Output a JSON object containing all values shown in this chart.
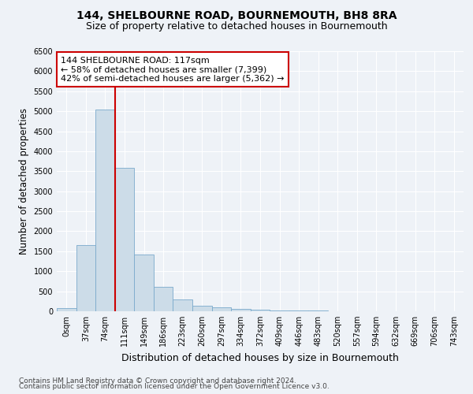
{
  "title": "144, SHELBOURNE ROAD, BOURNEMOUTH, BH8 8RA",
  "subtitle": "Size of property relative to detached houses in Bournemouth",
  "xlabel": "Distribution of detached houses by size in Bournemouth",
  "ylabel": "Number of detached properties",
  "bar_color": "#ccdce8",
  "bar_edge_color": "#7aaacc",
  "bin_labels": [
    "0sqm",
    "37sqm",
    "74sqm",
    "111sqm",
    "149sqm",
    "186sqm",
    "223sqm",
    "260sqm",
    "297sqm",
    "334sqm",
    "372sqm",
    "409sqm",
    "446sqm",
    "483sqm",
    "520sqm",
    "557sqm",
    "594sqm",
    "632sqm",
    "669sqm",
    "706sqm",
    "743sqm"
  ],
  "bar_heights": [
    75,
    1650,
    5050,
    3580,
    1420,
    620,
    300,
    140,
    90,
    50,
    40,
    20,
    15,
    10,
    5,
    5,
    3,
    2,
    2,
    1,
    1
  ],
  "ylim": [
    0,
    6500
  ],
  "yticks": [
    0,
    500,
    1000,
    1500,
    2000,
    2500,
    3000,
    3500,
    4000,
    4500,
    5000,
    5500,
    6000,
    6500
  ],
  "property_line_x": 3.0,
  "vline_color": "#cc0000",
  "annotation_text": "144 SHELBOURNE ROAD: 117sqm\n← 58% of detached houses are smaller (7,399)\n42% of semi-detached houses are larger (5,362) →",
  "annotation_box_color": "#ffffff",
  "annotation_box_edge": "#cc0000",
  "footer1": "Contains HM Land Registry data © Crown copyright and database right 2024.",
  "footer2": "Contains public sector information licensed under the Open Government Licence v3.0.",
  "background_color": "#eef2f7",
  "grid_color": "#ffffff",
  "title_fontsize": 10,
  "subtitle_fontsize": 9,
  "axis_label_fontsize": 8.5,
  "tick_fontsize": 7,
  "annotation_fontsize": 8,
  "footer_fontsize": 6.5
}
